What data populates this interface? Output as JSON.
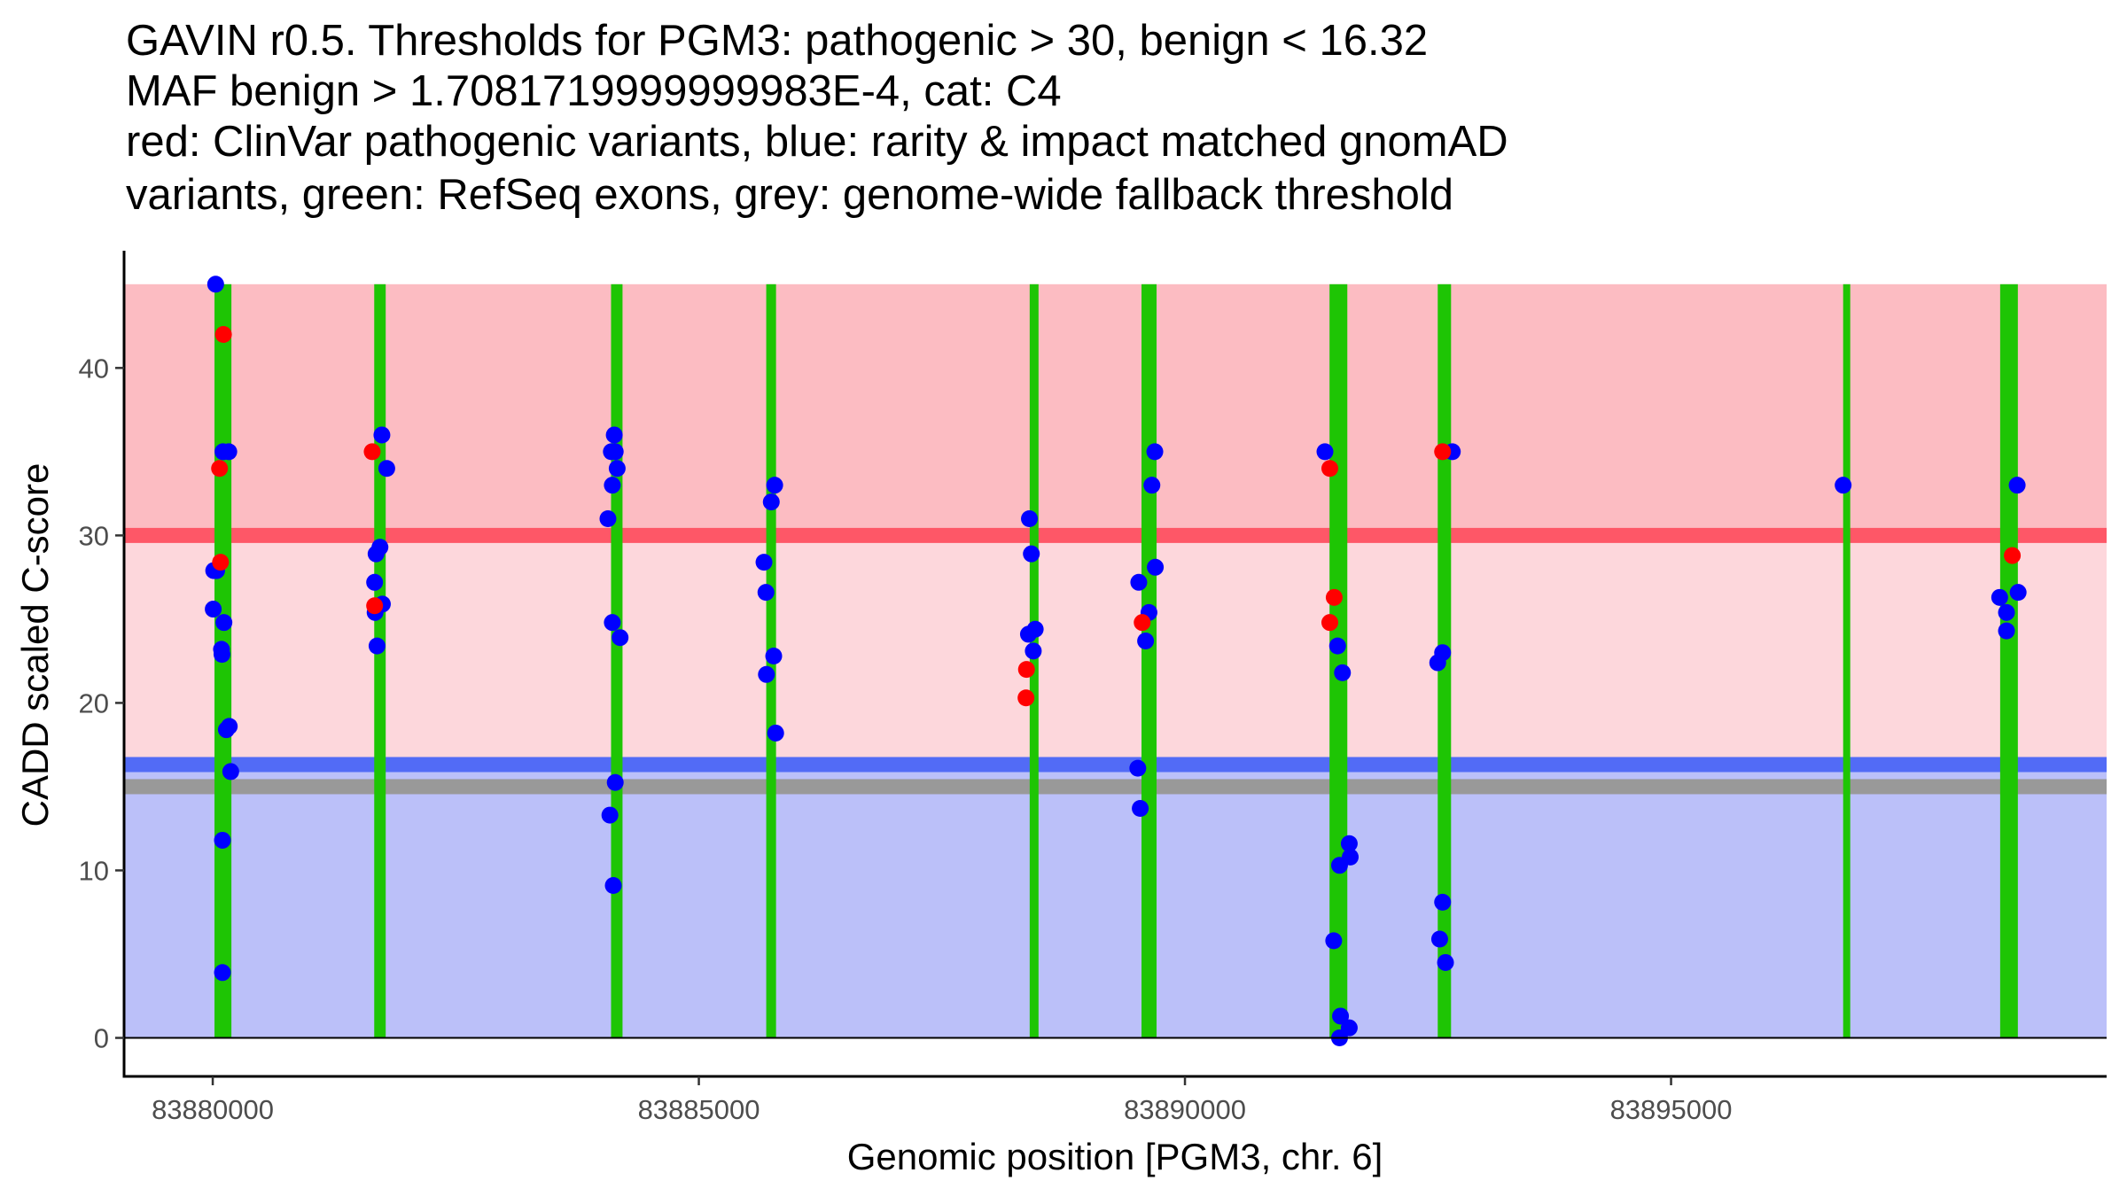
{
  "chart_data": {
    "type": "scatter",
    "title_lines": [
      "GAVIN r0.5. Thresholds for PGM3: pathogenic > 30, benign < 16.32",
      "MAF benign > 1.7081719999999983E-4, cat: C4",
      "red: ClinVar pathogenic variants, blue: rarity & impact matched gnomAD",
      "variants, green: RefSeq exons, grey: genome-wide fallback threshold"
    ],
    "xlabel": "Genomic position [PGM3, chr. 6]",
    "ylabel": "CADD scaled C-score",
    "xlim": [
      83879088,
      83899480
    ],
    "ylim": [
      -2.3,
      47
    ],
    "x_ticks": [
      83880000,
      83885000,
      83890000,
      83895000
    ],
    "x_tick_labels": [
      "83880000",
      "83885000",
      "83890000",
      "83895000"
    ],
    "y_ticks": [
      0,
      10,
      20,
      30,
      40
    ],
    "y_tick_labels": [
      "0",
      "10",
      "20",
      "30",
      "40"
    ],
    "grid": false,
    "legend": "none (described in title)",
    "colors": {
      "pathogenic_region": "#fcbcc2",
      "vus_region": "#fdd7dc",
      "benign_region": "#bbc0f9",
      "pathogenic_threshold_line": "#fe5767",
      "benign_threshold_line": "#526bf6",
      "fallback_threshold_line": "#999999",
      "exon": "#1ec504",
      "clinvar_point": "#ff0000",
      "gnomad_point": "#0000ff",
      "axis": "#000000",
      "tick_label": "#4d4d4d"
    },
    "regions": [
      {
        "name": "pathogenic",
        "y_from": 30,
        "y_to": 45
      },
      {
        "name": "vus",
        "y_from": 16.32,
        "y_to": 30
      },
      {
        "name": "benign",
        "y_from": 0,
        "y_to": 16.32
      }
    ],
    "thresholds": {
      "pathogenic": 30,
      "benign": 16.32,
      "genome_wide_fallback": 15
    },
    "exons": [
      {
        "start": 83880018,
        "end": 83880192
      },
      {
        "start": 83881661,
        "end": 83881779
      },
      {
        "start": 83884097,
        "end": 83884215
      },
      {
        "start": 83885693,
        "end": 83885794
      },
      {
        "start": 83888403,
        "end": 83888494
      },
      {
        "start": 83889553,
        "end": 83889708
      },
      {
        "start": 83891487,
        "end": 83891670
      },
      {
        "start": 83892600,
        "end": 83892737
      },
      {
        "start": 83896770,
        "end": 83896843
      },
      {
        "start": 83898385,
        "end": 83898567
      }
    ],
    "series": [
      {
        "name": "gnomAD rarity & impact matched variants",
        "color": "blue",
        "points": [
          [
            83880030,
            45.0
          ],
          [
            83880105,
            35.0
          ],
          [
            83880165,
            35.0
          ],
          [
            83880010,
            27.9
          ],
          [
            83880040,
            27.9
          ],
          [
            83880005,
            25.6
          ],
          [
            83880115,
            24.8
          ],
          [
            83880090,
            23.2
          ],
          [
            83880095,
            22.9
          ],
          [
            83880170,
            18.6
          ],
          [
            83880140,
            18.4
          ],
          [
            83880185,
            15.9
          ],
          [
            83880100,
            11.8
          ],
          [
            83880100,
            3.9
          ],
          [
            83881740,
            36.0
          ],
          [
            83881790,
            34.0
          ],
          [
            83881720,
            29.3
          ],
          [
            83881680,
            28.9
          ],
          [
            83881665,
            27.2
          ],
          [
            83881745,
            25.9
          ],
          [
            83881670,
            25.4
          ],
          [
            83881690,
            23.4
          ],
          [
            83884130,
            36.0
          ],
          [
            83884100,
            35.0
          ],
          [
            83884140,
            35.0
          ],
          [
            83884160,
            34.0
          ],
          [
            83884110,
            33.0
          ],
          [
            83884065,
            31.0
          ],
          [
            83884110,
            24.8
          ],
          [
            83884190,
            23.9
          ],
          [
            83884140,
            15.25
          ],
          [
            83884085,
            13.3
          ],
          [
            83884120,
            9.1
          ],
          [
            83885780,
            33.0
          ],
          [
            83885745,
            32.0
          ],
          [
            83885670,
            28.4
          ],
          [
            83885690,
            26.6
          ],
          [
            83885770,
            22.8
          ],
          [
            83885695,
            21.7
          ],
          [
            83885790,
            18.2
          ],
          [
            83888400,
            31.0
          ],
          [
            83888420,
            28.9
          ],
          [
            83888460,
            24.4
          ],
          [
            83888390,
            24.1
          ],
          [
            83888440,
            23.1
          ],
          [
            83889690,
            35.0
          ],
          [
            83889660,
            33.0
          ],
          [
            83889695,
            28.1
          ],
          [
            83889525,
            27.2
          ],
          [
            83889630,
            25.4
          ],
          [
            83889595,
            23.7
          ],
          [
            83889515,
            16.1
          ],
          [
            83889540,
            13.7
          ],
          [
            83891440,
            35.0
          ],
          [
            83891570,
            23.4
          ],
          [
            83891620,
            21.8
          ],
          [
            83891690,
            11.6
          ],
          [
            83891700,
            10.8
          ],
          [
            83891590,
            10.3
          ],
          [
            83891530,
            5.8
          ],
          [
            83891600,
            1.3
          ],
          [
            83891690,
            0.6
          ],
          [
            83891590,
            0.0
          ],
          [
            83892750,
            35.0
          ],
          [
            83892650,
            23.0
          ],
          [
            83892600,
            22.4
          ],
          [
            83892650,
            8.1
          ],
          [
            83892620,
            5.9
          ],
          [
            83892680,
            4.5
          ],
          [
            83896770,
            33.0
          ],
          [
            83898560,
            33.0
          ],
          [
            83898570,
            26.6
          ],
          [
            83898380,
            26.3
          ],
          [
            83898450,
            25.4
          ],
          [
            83898450,
            24.3
          ]
        ]
      },
      {
        "name": "ClinVar pathogenic variants",
        "color": "red",
        "points": [
          [
            83880110,
            42.0
          ],
          [
            83880070,
            34.0
          ],
          [
            83880080,
            28.4
          ],
          [
            83881640,
            35.0
          ],
          [
            83881665,
            25.8
          ],
          [
            83888370,
            22.0
          ],
          [
            83888365,
            20.3
          ],
          [
            83889560,
            24.8
          ],
          [
            83891490,
            34.0
          ],
          [
            83891535,
            26.3
          ],
          [
            83891490,
            24.8
          ],
          [
            83892650,
            35.0
          ],
          [
            83898510,
            28.8
          ]
        ]
      }
    ]
  }
}
